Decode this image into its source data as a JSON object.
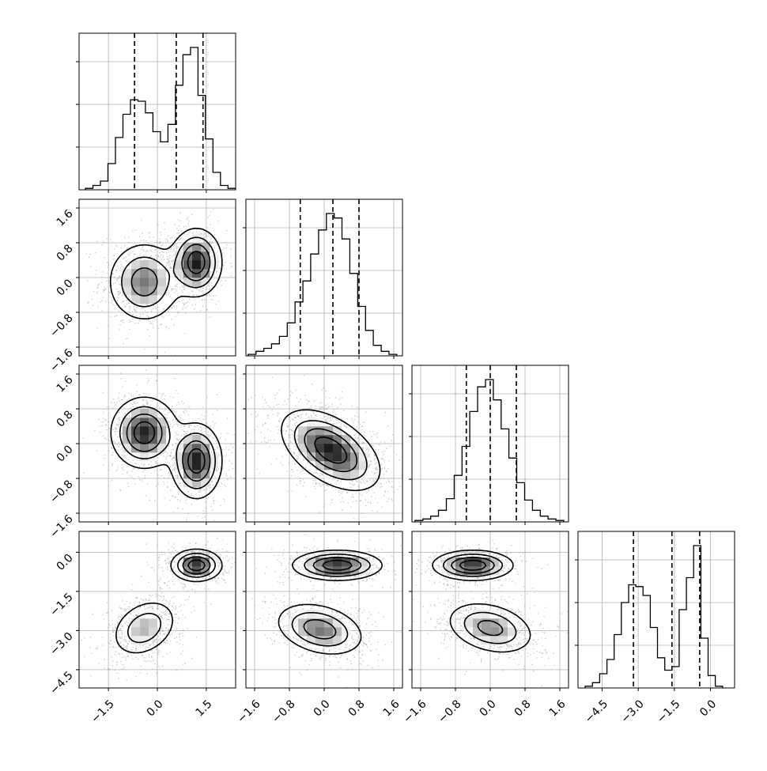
{
  "chart_data": {
    "type": "corner",
    "variables": 4,
    "grid": true,
    "axes": {
      "x": [
        {
          "range": [
            -2.4,
            2.4
          ],
          "ticks": [
            -1.5,
            0.0,
            1.5
          ],
          "tick_labels": [
            "−1.5",
            "0.0",
            "1.5"
          ]
        },
        {
          "range": [
            -1.8,
            1.8
          ],
          "ticks": [
            -1.6,
            -0.8,
            0.0,
            0.8,
            1.6
          ],
          "tick_labels": [
            "−1.6",
            "−0.8",
            "0.0",
            "0.8",
            "1.6"
          ]
        },
        {
          "range": [
            -1.8,
            1.8
          ],
          "ticks": [
            -1.6,
            -0.8,
            0.0,
            0.8,
            1.6
          ],
          "tick_labels": [
            "−1.6",
            "−0.8",
            "0.0",
            "0.8",
            "1.6"
          ]
        },
        {
          "range": [
            -5.5,
            1.0
          ],
          "ticks": [
            -4.5,
            -3.0,
            -1.5,
            0.0
          ],
          "tick_labels": [
            "−4.5",
            "−3.0",
            "−1.5",
            "0.0"
          ]
        }
      ],
      "y": [
        null,
        {
          "range": [
            -1.8,
            1.8
          ],
          "ticks": [
            -1.6,
            -0.8,
            0.0,
            0.8,
            1.6
          ],
          "tick_labels": [
            "−1.6",
            "−0.8",
            "0.0",
            "0.8",
            "1.6"
          ]
        },
        {
          "range": [
            -1.8,
            1.8
          ],
          "ticks": [
            -1.6,
            -0.8,
            0.0,
            0.8,
            1.6
          ],
          "tick_labels": [
            "−1.6",
            "−0.8",
            "0.0",
            "0.8",
            "1.6"
          ]
        },
        {
          "range": [
            -5.2,
            0.8
          ],
          "ticks": [
            -4.5,
            -3.0,
            -1.5,
            0.0
          ],
          "tick_labels": [
            "−4.5",
            "−3.0",
            "−1.5",
            "0.0"
          ]
        }
      ]
    },
    "histograms": [
      {
        "bin_centers": [
          -2.09,
          -1.86,
          -1.63,
          -1.4,
          -1.17,
          -0.94,
          -0.71,
          -0.48,
          -0.25,
          -0.02,
          0.21,
          0.44,
          0.67,
          0.9,
          1.13,
          1.36,
          1.59,
          1.82,
          2.05,
          2.28
        ],
        "counts": [
          0.01,
          0.03,
          0.06,
          0.18,
          0.36,
          0.52,
          0.62,
          0.61,
          0.53,
          0.4,
          0.33,
          0.45,
          0.72,
          0.93,
          0.98,
          0.65,
          0.35,
          0.12,
          0.03,
          0.01
        ],
        "quantiles": [
          -0.7,
          0.58,
          1.4
        ]
      },
      {
        "bin_centers": [
          -1.66,
          -1.48,
          -1.3,
          -1.12,
          -0.94,
          -0.76,
          -0.58,
          -0.4,
          -0.22,
          -0.04,
          0.14,
          0.32,
          0.5,
          0.68,
          0.86,
          1.04,
          1.22,
          1.4,
          1.58
        ],
        "counts": [
          0.01,
          0.03,
          0.05,
          0.08,
          0.13,
          0.22,
          0.36,
          0.5,
          0.68,
          0.84,
          0.95,
          0.92,
          0.78,
          0.55,
          0.33,
          0.17,
          0.07,
          0.03,
          0.01
        ],
        "quantiles": [
          -0.55,
          0.2,
          0.8
        ]
      },
      {
        "bin_centers": [
          -1.64,
          -1.46,
          -1.28,
          -1.1,
          -0.92,
          -0.74,
          -0.56,
          -0.38,
          -0.2,
          -0.02,
          0.16,
          0.34,
          0.52,
          0.7,
          0.88,
          1.06,
          1.24,
          1.42,
          1.6
        ],
        "counts": [
          0.01,
          0.02,
          0.04,
          0.08,
          0.16,
          0.32,
          0.52,
          0.76,
          0.93,
          0.98,
          0.84,
          0.64,
          0.44,
          0.27,
          0.15,
          0.08,
          0.04,
          0.02,
          0.01
        ],
        "quantiles": [
          -0.55,
          0.0,
          0.6
        ]
      },
      {
        "bin_centers": [
          -5.05,
          -4.75,
          -4.45,
          -4.15,
          -3.85,
          -3.55,
          -3.25,
          -2.95,
          -2.65,
          -2.35,
          -2.05,
          -1.75,
          -1.45,
          -1.15,
          -0.85,
          -0.55,
          -0.25,
          0.05,
          0.35
        ],
        "counts": [
          0.01,
          0.03,
          0.08,
          0.16,
          0.3,
          0.48,
          0.58,
          0.57,
          0.52,
          0.34,
          0.17,
          0.1,
          0.12,
          0.44,
          0.62,
          0.8,
          0.28,
          0.07,
          0.01
        ],
        "quantiles": [
          -3.2,
          -1.6,
          -0.45
        ]
      }
    ],
    "blobs": [
      {
        "row": 1,
        "col": 0,
        "components": [
          {
            "mx": -0.4,
            "my": -0.1,
            "sx": 0.55,
            "sy": 0.45,
            "rho": 0.0,
            "w": 0.55
          },
          {
            "mx": 1.2,
            "my": 0.35,
            "sx": 0.38,
            "sy": 0.38,
            "rho": 0.0,
            "w": 0.45
          }
        ]
      },
      {
        "row": 2,
        "col": 0,
        "components": [
          {
            "mx": -0.4,
            "my": 0.25,
            "sx": 0.5,
            "sy": 0.4,
            "rho": 0.0,
            "w": 0.55
          },
          {
            "mx": 1.2,
            "my": -0.4,
            "sx": 0.38,
            "sy": 0.42,
            "rho": 0.0,
            "w": 0.45
          }
        ]
      },
      {
        "row": 2,
        "col": 1,
        "components": [
          {
            "mx": 0.15,
            "my": -0.15,
            "sx": 0.55,
            "sy": 0.45,
            "rho": -0.5,
            "w": 1.0
          }
        ]
      },
      {
        "row": 3,
        "col": 0,
        "components": [
          {
            "mx": -0.4,
            "my": -2.9,
            "sx": 0.5,
            "sy": 0.55,
            "rho": 0.3,
            "w": 0.55
          },
          {
            "mx": 1.2,
            "my": -0.5,
            "sx": 0.38,
            "sy": 0.3,
            "rho": 0.0,
            "w": 0.45
          }
        ]
      },
      {
        "row": 3,
        "col": 1,
        "components": [
          {
            "mx": -0.1,
            "my": -2.95,
            "sx": 0.5,
            "sy": 0.5,
            "rho": -0.3,
            "w": 0.55
          },
          {
            "mx": 0.3,
            "my": -0.5,
            "sx": 0.5,
            "sy": 0.28,
            "rho": 0.0,
            "w": 0.45
          }
        ]
      },
      {
        "row": 3,
        "col": 2,
        "components": [
          {
            "mx": 0.0,
            "my": -2.9,
            "sx": 0.5,
            "sy": 0.5,
            "rho": -0.3,
            "w": 0.55
          },
          {
            "mx": -0.4,
            "my": -0.5,
            "sx": 0.45,
            "sy": 0.28,
            "rho": 0.0,
            "w": 0.45
          }
        ]
      }
    ]
  }
}
